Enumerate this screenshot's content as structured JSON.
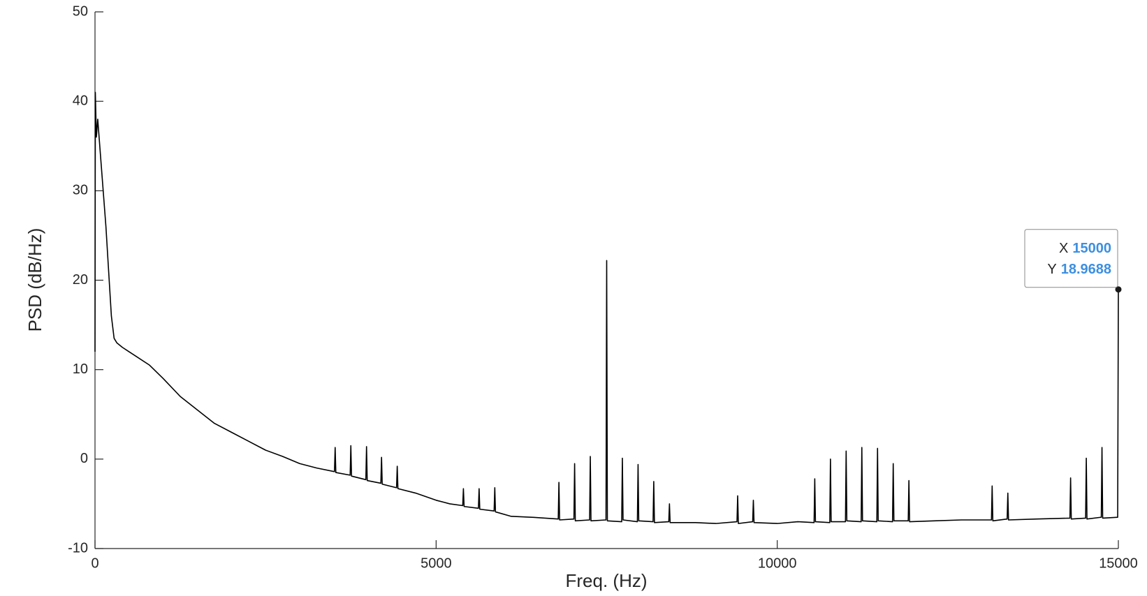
{
  "chart_data": {
    "type": "line",
    "xlabel": "Freq. (Hz)",
    "ylabel": "PSD (dB/Hz)",
    "color": "#000000",
    "xlim": [
      0,
      15000
    ],
    "ylim": [
      -10,
      50
    ],
    "xticks": [
      0,
      5000,
      10000,
      15000
    ],
    "yticks": [
      -10,
      0,
      10,
      20,
      30,
      40,
      50
    ],
    "grid": false,
    "x": [
      0,
      5,
      20,
      40,
      80,
      120,
      160,
      200,
      240,
      280,
      320,
      400,
      500,
      600,
      800,
      1000,
      1250,
      1500,
      1750,
      2000,
      2250,
      2500,
      2750,
      3000,
      3250,
      3510,
      3520,
      3530,
      3740,
      3750,
      3760,
      3970,
      3980,
      3990,
      4190,
      4200,
      4210,
      4420,
      4430,
      4440,
      4700,
      5000,
      5200,
      5390,
      5400,
      5410,
      5620,
      5630,
      5640,
      5850,
      5860,
      5870,
      6100,
      6400,
      6790,
      6800,
      6810,
      7020,
      7030,
      7040,
      7250,
      7260,
      7270,
      7490,
      7500,
      7510,
      7720,
      7730,
      7740,
      7950,
      7960,
      7970,
      8180,
      8190,
      8200,
      8410,
      8420,
      8430,
      8800,
      9100,
      9410,
      9420,
      9430,
      9640,
      9650,
      9660,
      10000,
      10300,
      10540,
      10550,
      10560,
      10770,
      10780,
      10790,
      11000,
      11010,
      11020,
      11230,
      11240,
      11250,
      11460,
      11470,
      11480,
      11690,
      11700,
      11710,
      11920,
      11930,
      11940,
      12300,
      12700,
      13140,
      13150,
      13160,
      13370,
      13380,
      13390,
      13800,
      14290,
      14300,
      14310,
      14520,
      14530,
      14540,
      14750,
      14760,
      14770,
      14990,
      15000
    ],
    "values": [
      12,
      41,
      36,
      38,
      34,
      30,
      26,
      21,
      16,
      13.5,
      13,
      12.5,
      12,
      11.5,
      10.5,
      9,
      7,
      5.5,
      4,
      3,
      2,
      1,
      0.3,
      -0.5,
      -1,
      -1.4,
      1.3,
      -1.5,
      -1.8,
      1.5,
      -1.9,
      -2.3,
      1.4,
      -2.4,
      -2.7,
      0.2,
      -2.8,
      -3.2,
      -0.8,
      -3.3,
      -3.8,
      -4.6,
      -5,
      -5.2,
      -3.3,
      -5.3,
      -5.5,
      -3.3,
      -5.6,
      -5.8,
      -3.2,
      -5.9,
      -6.4,
      -6.5,
      -6.7,
      -2.6,
      -6.8,
      -6.7,
      -0.5,
      -6.9,
      -6.8,
      0.3,
      -6.9,
      -6.8,
      22.2,
      -6.9,
      -7,
      0.1,
      -6.8,
      -7,
      -0.6,
      -6.9,
      -7,
      -2.5,
      -7.1,
      -7,
      -5,
      -7.1,
      -7.1,
      -7.2,
      -7,
      -4.1,
      -7.2,
      -7,
      -4.6,
      -7.1,
      -7.2,
      -7,
      -7.1,
      -2.2,
      -7,
      -7.1,
      0,
      -7,
      -7,
      0.9,
      -6.9,
      -7,
      1.3,
      -6.9,
      -7,
      1.2,
      -6.9,
      -7,
      -0.5,
      -6.9,
      -6.9,
      -2.4,
      -7,
      -6.9,
      -6.8,
      -6.8,
      -3,
      -6.9,
      -6.7,
      -3.8,
      -6.8,
      -6.7,
      -6.6,
      -2.1,
      -6.7,
      -6.6,
      0.1,
      -6.7,
      -6.5,
      1.3,
      -6.6,
      -6.5,
      18.9688
    ],
    "datatip": {
      "x_label": "X",
      "x": 15000,
      "y_label": "Y",
      "y": 18.9688
    }
  }
}
